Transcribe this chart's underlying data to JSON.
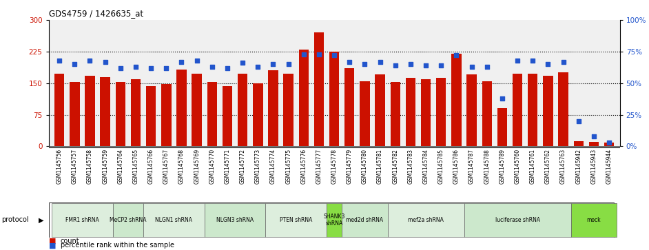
{
  "title": "GDS4759 / 1426635_at",
  "samples": [
    "GSM1145756",
    "GSM1145757",
    "GSM1145758",
    "GSM1145759",
    "GSM1145764",
    "GSM1145765",
    "GSM1145766",
    "GSM1145767",
    "GSM1145768",
    "GSM1145769",
    "GSM1145770",
    "GSM1145771",
    "GSM1145772",
    "GSM1145773",
    "GSM1145774",
    "GSM1145775",
    "GSM1145776",
    "GSM1145777",
    "GSM1145778",
    "GSM1145779",
    "GSM1145780",
    "GSM1145781",
    "GSM1145782",
    "GSM1145783",
    "GSM1145784",
    "GSM1145785",
    "GSM1145786",
    "GSM1145787",
    "GSM1145788",
    "GSM1145789",
    "GSM1145760",
    "GSM1145761",
    "GSM1145762",
    "GSM1145763",
    "GSM1145942",
    "GSM1145943",
    "GSM1145944"
  ],
  "counts": [
    172,
    153,
    168,
    165,
    153,
    160,
    143,
    148,
    182,
    172,
    153,
    143,
    173,
    150,
    180,
    172,
    230,
    270,
    225,
    185,
    155,
    170,
    153,
    163,
    160,
    163,
    220,
    170,
    155,
    90,
    173,
    172,
    167,
    175,
    12,
    10,
    8
  ],
  "percentiles": [
    68,
    65,
    68,
    67,
    62,
    63,
    62,
    62,
    67,
    68,
    63,
    62,
    66,
    63,
    65,
    65,
    73,
    73,
    72,
    67,
    65,
    67,
    64,
    65,
    64,
    64,
    72,
    63,
    63,
    38,
    68,
    68,
    65,
    67,
    20,
    8,
    3
  ],
  "protocol_groups": [
    {
      "label": "FMR1 shRNA",
      "start": 0,
      "end": 3,
      "color": "#ddeedd"
    },
    {
      "label": "MeCP2 shRNA",
      "start": 4,
      "end": 5,
      "color": "#cce8cc"
    },
    {
      "label": "NLGN1 shRNA",
      "start": 6,
      "end": 9,
      "color": "#ddeedd"
    },
    {
      "label": "NLGN3 shRNA",
      "start": 10,
      "end": 13,
      "color": "#cce8cc"
    },
    {
      "label": "PTEN shRNA",
      "start": 14,
      "end": 17,
      "color": "#ddeedd"
    },
    {
      "label": "SHANK3\nshRNA",
      "start": 18,
      "end": 18,
      "color": "#88dd44"
    },
    {
      "label": "med2d shRNA",
      "start": 19,
      "end": 21,
      "color": "#cce8cc"
    },
    {
      "label": "mef2a shRNA",
      "start": 22,
      "end": 26,
      "color": "#ddeedd"
    },
    {
      "label": "luciferase shRNA",
      "start": 27,
      "end": 33,
      "color": "#cce8cc"
    },
    {
      "label": "mock",
      "start": 34,
      "end": 36,
      "color": "#88dd44"
    }
  ],
  "bar_color": "#cc1100",
  "dot_color": "#2255cc",
  "ylim_left": [
    0,
    300
  ],
  "ylim_right": [
    0,
    100
  ],
  "yticks_left": [
    0,
    75,
    150,
    225,
    300
  ],
  "yticks_right": [
    0,
    25,
    50,
    75,
    100
  ],
  "grid_lines": [
    75,
    150,
    225
  ],
  "bg_color": "#f0f0f0"
}
